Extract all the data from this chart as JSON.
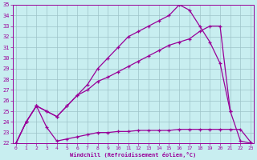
{
  "xlabel": "Windchill (Refroidissement éolien,°C)",
  "bg_color": "#c8eef0",
  "line_color": "#990099",
  "xlim": [
    -0.3,
    23.3
  ],
  "ylim": [
    22,
    35
  ],
  "xticks": [
    0,
    1,
    2,
    3,
    4,
    5,
    6,
    7,
    8,
    9,
    10,
    11,
    12,
    13,
    14,
    15,
    16,
    17,
    18,
    19,
    20,
    21,
    22,
    23
  ],
  "yticks": [
    22,
    23,
    24,
    25,
    26,
    27,
    28,
    29,
    30,
    31,
    32,
    33,
    34,
    35
  ],
  "curve1_x": [
    0,
    1,
    2,
    3,
    4,
    5,
    6,
    7,
    8,
    9,
    10,
    11,
    12,
    13,
    14,
    15,
    16,
    17,
    18,
    19,
    20,
    21,
    22,
    23
  ],
  "curve1_y": [
    22,
    24,
    25.5,
    23.5,
    22.2,
    22.4,
    22.6,
    22.8,
    23.0,
    23.0,
    23.1,
    23.1,
    23.2,
    23.2,
    23.2,
    23.2,
    23.3,
    23.3,
    23.3,
    23.3,
    23.3,
    23.3,
    23.3,
    22.1
  ],
  "curve2_x": [
    0,
    1,
    2,
    3,
    4,
    5,
    6,
    7,
    8,
    9,
    10,
    11,
    12,
    13,
    14,
    15,
    16,
    17,
    18,
    19,
    20,
    21,
    22,
    23
  ],
  "curve2_y": [
    22,
    24,
    25.5,
    25.0,
    24.5,
    25.5,
    26.5,
    27.0,
    27.8,
    28.2,
    28.7,
    29.2,
    29.7,
    30.2,
    30.7,
    31.2,
    31.5,
    31.8,
    32.5,
    33.0,
    33.0,
    25.0,
    22.2,
    22.0
  ],
  "curve3_x": [
    0,
    1,
    2,
    3,
    4,
    5,
    6,
    7,
    8,
    9,
    10,
    11,
    12,
    13,
    14,
    15,
    16,
    17,
    18,
    19,
    20,
    21
  ],
  "curve3_y": [
    22,
    24,
    25.5,
    25.0,
    24.5,
    25.5,
    26.5,
    27.5,
    29.0,
    30.0,
    31.0,
    32.0,
    32.5,
    33.0,
    33.5,
    34.0,
    35.0,
    34.5,
    33.0,
    31.5,
    29.5,
    25.0
  ],
  "grid_color": "#9ec4c8",
  "font_color": "#990099",
  "font_family": "monospace"
}
